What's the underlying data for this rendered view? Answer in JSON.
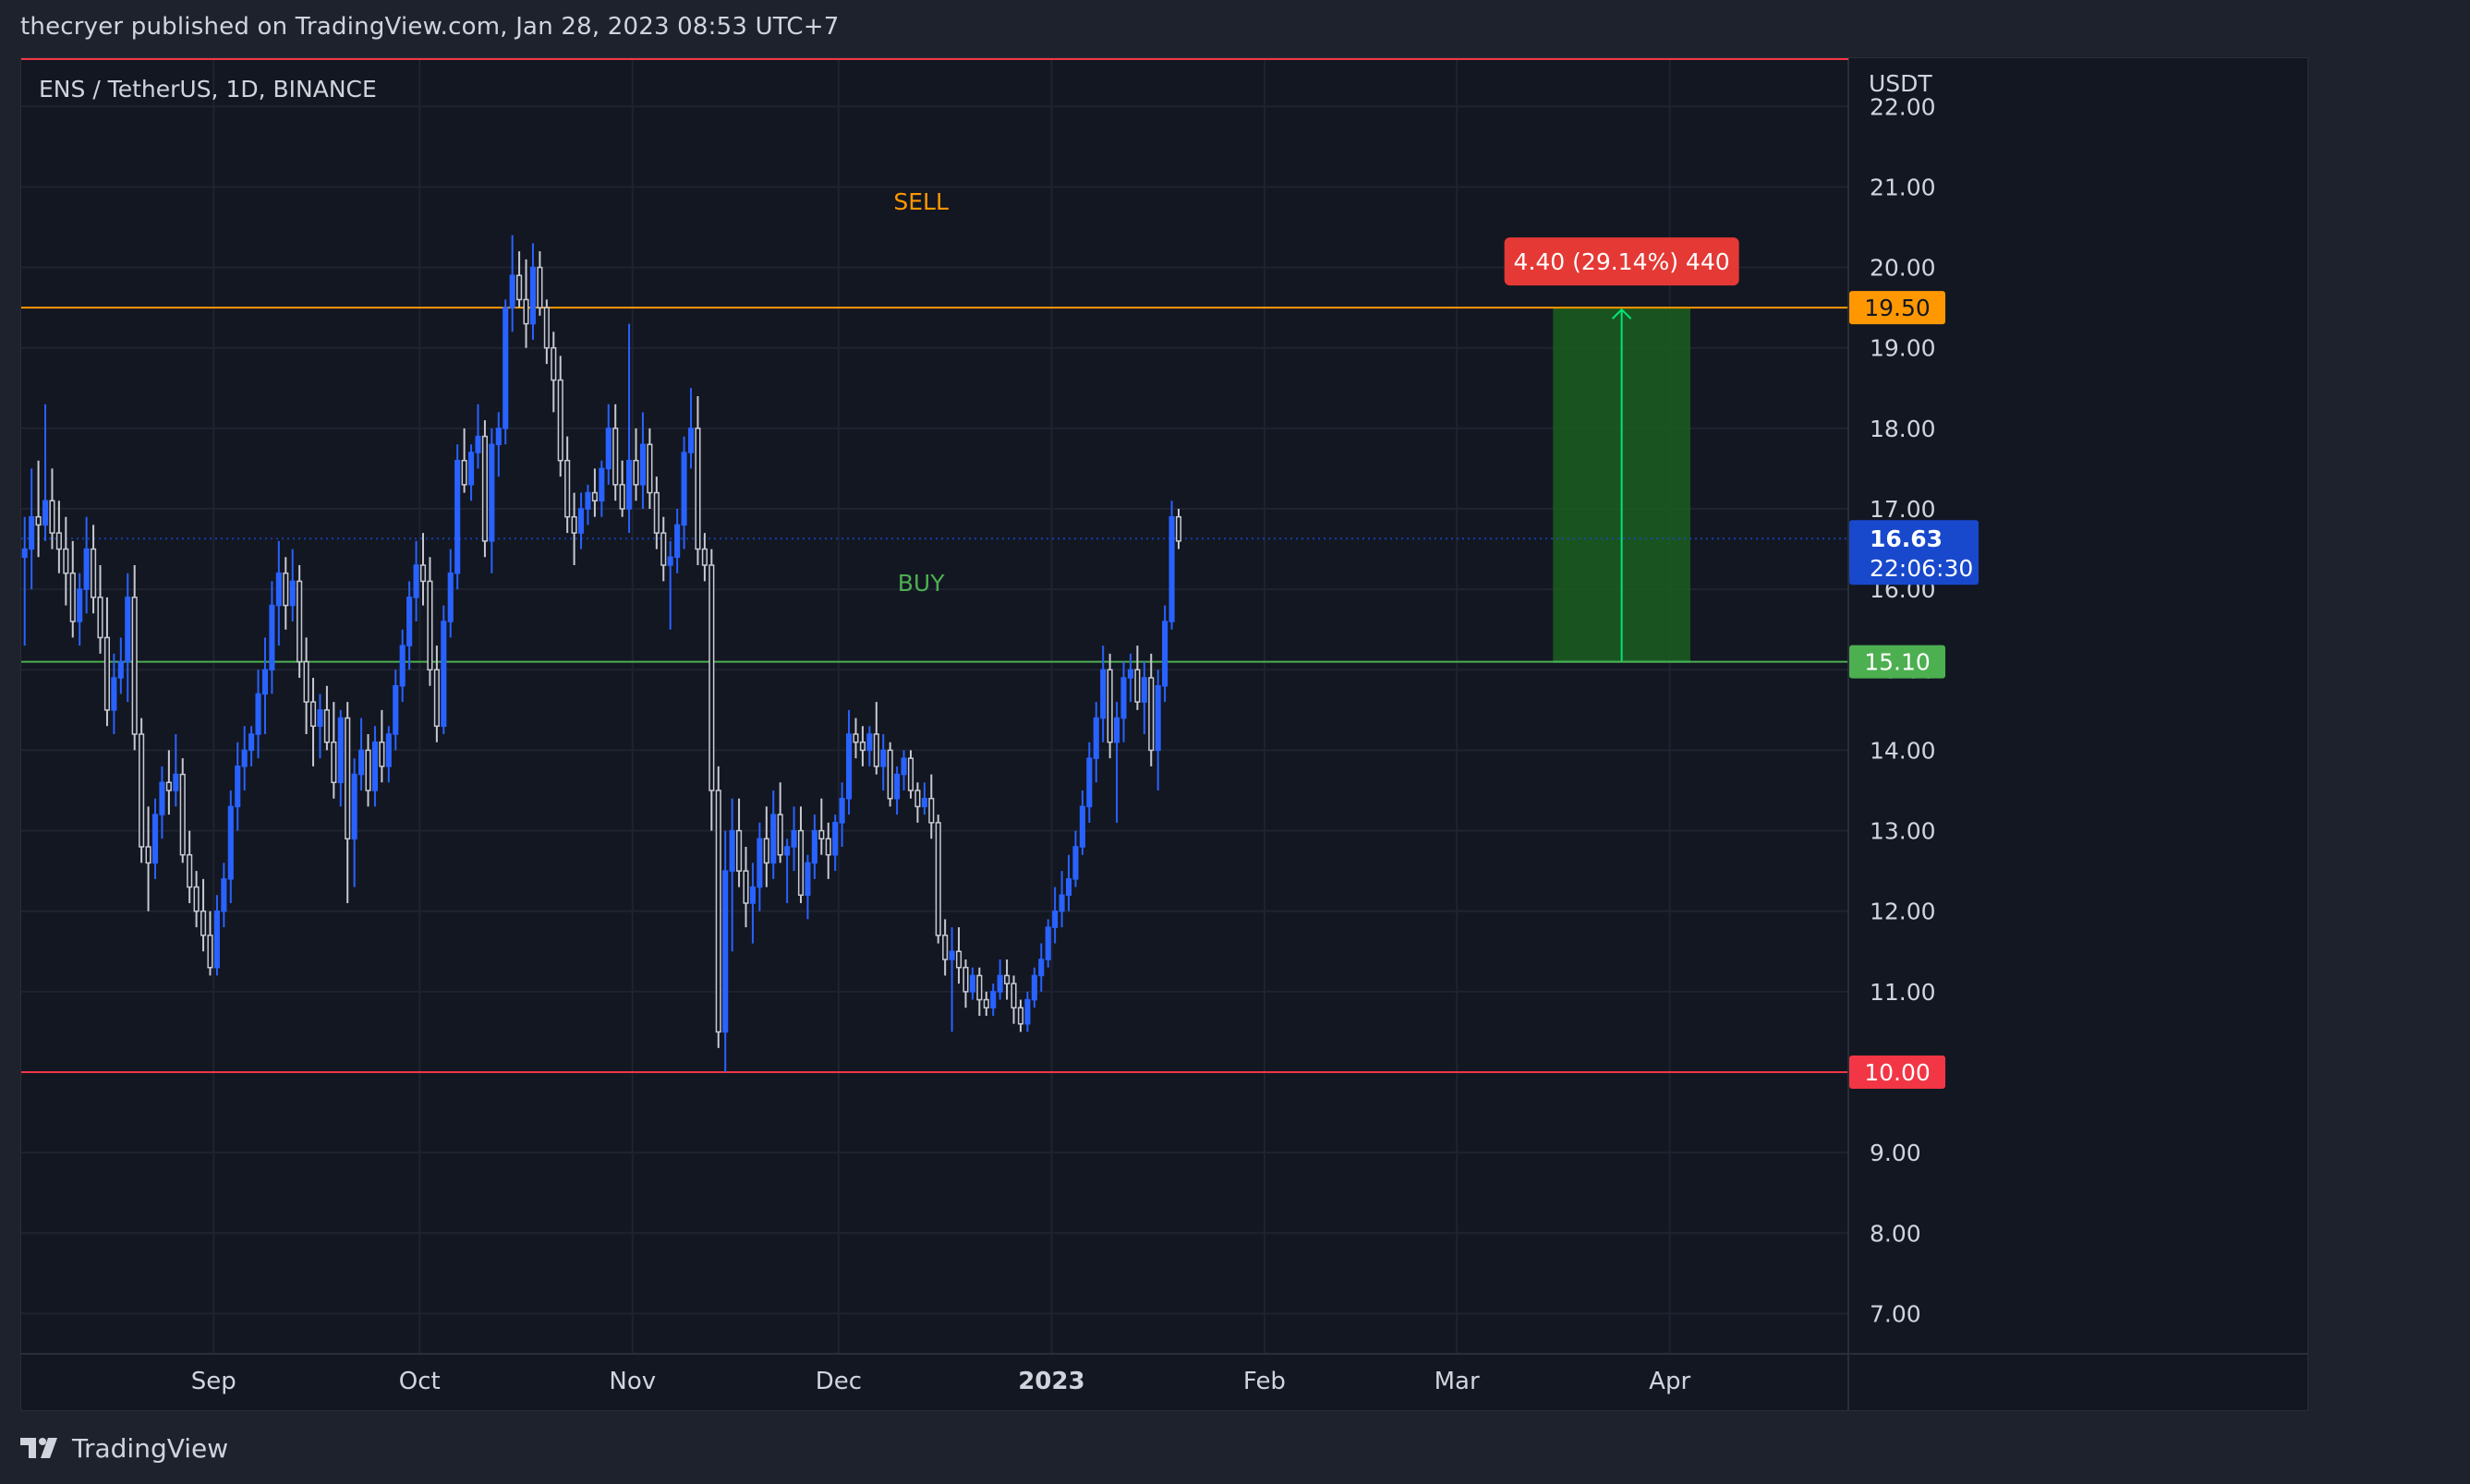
{
  "header": {
    "published_text": "thecryer published on TradingView.com, Jan 28, 2023 08:53 UTC+7"
  },
  "footer": {
    "brand": "TradingView"
  },
  "colors": {
    "background": "#131722",
    "grid": "#1f2330",
    "text": "#d1d4dc",
    "candle_up": "#2962ff",
    "candle_down": "#c7c9d1",
    "sell_line": "#ff9800",
    "buy_line": "#4caf50",
    "stop_line": "#f23645",
    "last_price": "#1848cc",
    "target_zone": "#1b5e20",
    "arrow": "#00e676",
    "measure_label": "#e53935"
  },
  "chart_data": {
    "type": "candlestick",
    "title": "ENS / TetherUS, 1D, BINANCE",
    "currency": "USDT",
    "ylim": [
      6.5,
      22.6
    ],
    "y_ticks": [
      7.0,
      8.0,
      9.0,
      10.0,
      11.0,
      12.0,
      13.0,
      14.0,
      15.0,
      16.0,
      17.0,
      18.0,
      19.0,
      20.0,
      21.0,
      22.0
    ],
    "x_date_range": [
      "2022-08-04",
      "2023-04-27"
    ],
    "x_ticks": [
      {
        "label": "Sep",
        "date": "2022-09-01",
        "bold": false
      },
      {
        "label": "Oct",
        "date": "2022-10-01",
        "bold": false
      },
      {
        "label": "Nov",
        "date": "2022-11-01",
        "bold": false
      },
      {
        "label": "Dec",
        "date": "2022-12-01",
        "bold": false
      },
      {
        "label": "2023",
        "date": "2023-01-01",
        "bold": true
      },
      {
        "label": "Feb",
        "date": "2023-02-01",
        "bold": false
      },
      {
        "label": "Mar",
        "date": "2023-03-01",
        "bold": false
      },
      {
        "label": "Apr",
        "date": "2023-04-01",
        "bold": false
      }
    ],
    "levels": [
      {
        "name": "sell",
        "value": 19.5,
        "label": "19.50",
        "color": "#ff9800",
        "text_color": "#131722"
      },
      {
        "name": "buy",
        "value": 15.1,
        "label": "15.10",
        "color": "#4caf50",
        "text_color": "#ffffff"
      },
      {
        "name": "stop",
        "value": 10.0,
        "label": "10.00",
        "color": "#f23645",
        "text_color": "#ffffff"
      }
    ],
    "annotations": [
      {
        "text": "SELL",
        "date": "2022-12-13",
        "value": 20.82,
        "color": "#ff9800"
      },
      {
        "text": "BUY",
        "date": "2022-12-13",
        "value": 16.08,
        "color": "#4caf50"
      }
    ],
    "last_price": {
      "value": 16.63,
      "label": "16.63",
      "countdown": "22:06:30"
    },
    "price_range": {
      "label": "4.40 (29.14%) 440",
      "from_value": 15.1,
      "to_value": 19.5,
      "start_date": "2023-03-15",
      "end_date": "2023-04-04"
    },
    "series": [
      {
        "name": "ENS/USDT",
        "start_date": "2022-08-04",
        "ohlc": [
          [
            16.4,
            16.9,
            15.3,
            16.5
          ],
          [
            16.5,
            17.5,
            16.0,
            16.9
          ],
          [
            16.9,
            17.6,
            16.4,
            16.8
          ],
          [
            16.8,
            18.3,
            16.6,
            17.1
          ],
          [
            17.1,
            17.5,
            16.5,
            16.7
          ],
          [
            16.7,
            17.1,
            16.2,
            16.5
          ],
          [
            16.5,
            16.9,
            15.8,
            16.2
          ],
          [
            16.2,
            16.6,
            15.4,
            15.6
          ],
          [
            15.6,
            16.2,
            15.3,
            16.0
          ],
          [
            16.0,
            16.9,
            15.7,
            16.5
          ],
          [
            16.5,
            16.8,
            15.7,
            15.9
          ],
          [
            15.9,
            16.3,
            15.2,
            15.4
          ],
          [
            15.4,
            15.9,
            14.3,
            14.5
          ],
          [
            14.5,
            15.2,
            14.2,
            14.9
          ],
          [
            14.9,
            15.4,
            14.7,
            15.1
          ],
          [
            15.1,
            16.2,
            14.6,
            15.9
          ],
          [
            15.9,
            16.3,
            14.0,
            14.2
          ],
          [
            14.2,
            14.4,
            12.6,
            12.8
          ],
          [
            12.8,
            13.3,
            12.0,
            12.6
          ],
          [
            12.6,
            13.4,
            12.4,
            13.2
          ],
          [
            13.2,
            13.8,
            12.9,
            13.6
          ],
          [
            13.6,
            14.0,
            13.2,
            13.5
          ],
          [
            13.5,
            14.2,
            13.3,
            13.7
          ],
          [
            13.7,
            13.9,
            12.6,
            12.7
          ],
          [
            12.7,
            13.0,
            12.1,
            12.3
          ],
          [
            12.3,
            12.5,
            11.8,
            12.0
          ],
          [
            12.0,
            12.4,
            11.5,
            11.7
          ],
          [
            11.7,
            12.0,
            11.2,
            11.3
          ],
          [
            11.3,
            12.2,
            11.2,
            12.0
          ],
          [
            12.0,
            12.6,
            11.8,
            12.4
          ],
          [
            12.4,
            13.5,
            12.1,
            13.3
          ],
          [
            13.3,
            14.1,
            13.0,
            13.8
          ],
          [
            13.8,
            14.3,
            13.5,
            14.0
          ],
          [
            14.0,
            14.3,
            13.8,
            14.2
          ],
          [
            14.2,
            15.0,
            13.9,
            14.7
          ],
          [
            14.7,
            15.4,
            14.2,
            15.0
          ],
          [
            15.0,
            16.1,
            14.7,
            15.8
          ],
          [
            15.8,
            16.6,
            15.3,
            16.2
          ],
          [
            16.2,
            16.4,
            15.5,
            15.8
          ],
          [
            15.8,
            16.5,
            15.6,
            16.1
          ],
          [
            16.1,
            16.3,
            14.9,
            15.1
          ],
          [
            15.1,
            15.4,
            14.2,
            14.6
          ],
          [
            14.6,
            14.9,
            13.8,
            14.3
          ],
          [
            14.3,
            14.7,
            13.9,
            14.5
          ],
          [
            14.5,
            14.8,
            14.0,
            14.1
          ],
          [
            14.1,
            14.6,
            13.4,
            13.6
          ],
          [
            13.6,
            14.5,
            13.3,
            14.4
          ],
          [
            14.4,
            14.6,
            12.1,
            12.9
          ],
          [
            12.9,
            13.9,
            12.3,
            13.7
          ],
          [
            13.7,
            14.4,
            13.5,
            14.0
          ],
          [
            14.0,
            14.2,
            13.3,
            13.5
          ],
          [
            13.5,
            14.3,
            13.3,
            14.1
          ],
          [
            14.1,
            14.5,
            13.6,
            13.8
          ],
          [
            13.8,
            14.3,
            13.6,
            14.2
          ],
          [
            14.2,
            15.0,
            14.0,
            14.8
          ],
          [
            14.8,
            15.5,
            14.6,
            15.3
          ],
          [
            15.3,
            16.1,
            15.0,
            15.9
          ],
          [
            15.9,
            16.6,
            15.6,
            16.3
          ],
          [
            16.3,
            16.7,
            15.8,
            16.1
          ],
          [
            16.1,
            16.4,
            14.8,
            15.0
          ],
          [
            15.0,
            15.3,
            14.1,
            14.3
          ],
          [
            14.3,
            15.8,
            14.2,
            15.6
          ],
          [
            15.6,
            16.5,
            15.4,
            16.2
          ],
          [
            16.2,
            17.8,
            16.0,
            17.6
          ],
          [
            17.6,
            18.0,
            17.2,
            17.3
          ],
          [
            17.3,
            17.8,
            17.1,
            17.7
          ],
          [
            17.7,
            18.3,
            17.5,
            17.9
          ],
          [
            17.9,
            18.1,
            16.4,
            16.6
          ],
          [
            16.6,
            18.0,
            16.2,
            17.8
          ],
          [
            17.8,
            18.2,
            17.4,
            18.0
          ],
          [
            18.0,
            19.6,
            17.8,
            19.5
          ],
          [
            19.5,
            20.4,
            19.2,
            19.9
          ],
          [
            19.9,
            20.2,
            19.5,
            19.6
          ],
          [
            19.6,
            20.1,
            19.0,
            19.3
          ],
          [
            19.3,
            20.3,
            19.1,
            20.0
          ],
          [
            20.0,
            20.2,
            19.4,
            19.5
          ],
          [
            19.5,
            19.6,
            18.8,
            19.0
          ],
          [
            19.0,
            19.2,
            18.2,
            18.6
          ],
          [
            18.6,
            18.9,
            17.4,
            17.6
          ],
          [
            17.6,
            17.9,
            16.7,
            16.9
          ],
          [
            16.9,
            17.2,
            16.3,
            16.7
          ],
          [
            16.7,
            17.2,
            16.5,
            17.0
          ],
          [
            17.0,
            17.3,
            16.8,
            17.2
          ],
          [
            17.2,
            17.5,
            16.9,
            17.1
          ],
          [
            17.1,
            17.6,
            16.9,
            17.5
          ],
          [
            17.5,
            18.3,
            17.3,
            18.0
          ],
          [
            18.0,
            18.3,
            17.1,
            17.3
          ],
          [
            17.3,
            17.6,
            16.9,
            17.0
          ],
          [
            17.0,
            19.3,
            16.7,
            17.6
          ],
          [
            17.6,
            18.0,
            17.1,
            17.3
          ],
          [
            17.3,
            18.2,
            17.0,
            17.8
          ],
          [
            17.8,
            18.0,
            17.0,
            17.2
          ],
          [
            17.2,
            17.4,
            16.5,
            16.7
          ],
          [
            16.7,
            16.9,
            16.1,
            16.3
          ],
          [
            16.3,
            16.6,
            15.5,
            16.4
          ],
          [
            16.4,
            17.0,
            16.2,
            16.8
          ],
          [
            16.8,
            17.9,
            16.5,
            17.7
          ],
          [
            17.7,
            18.5,
            17.5,
            18.0
          ],
          [
            18.0,
            18.4,
            16.3,
            16.5
          ],
          [
            16.5,
            16.7,
            16.1,
            16.3
          ],
          [
            16.3,
            16.5,
            13.0,
            13.5
          ],
          [
            13.5,
            13.8,
            10.3,
            10.5
          ],
          [
            10.5,
            13.0,
            10.0,
            12.5
          ],
          [
            12.5,
            13.4,
            11.5,
            13.0
          ],
          [
            13.0,
            13.4,
            12.3,
            12.5
          ],
          [
            12.5,
            12.8,
            11.8,
            12.1
          ],
          [
            12.1,
            12.6,
            11.6,
            12.3
          ],
          [
            12.3,
            13.1,
            12.0,
            12.9
          ],
          [
            12.9,
            13.3,
            12.3,
            12.6
          ],
          [
            12.6,
            13.5,
            12.4,
            13.2
          ],
          [
            13.2,
            13.6,
            12.6,
            12.7
          ],
          [
            12.7,
            12.9,
            12.1,
            12.8
          ],
          [
            12.8,
            13.3,
            12.5,
            13.0
          ],
          [
            13.0,
            13.3,
            12.1,
            12.2
          ],
          [
            12.2,
            12.7,
            11.9,
            12.6
          ],
          [
            12.6,
            13.2,
            12.4,
            13.0
          ],
          [
            13.0,
            13.4,
            12.7,
            12.9
          ],
          [
            12.9,
            13.1,
            12.4,
            12.7
          ],
          [
            12.7,
            13.2,
            12.5,
            13.1
          ],
          [
            13.1,
            13.6,
            12.8,
            13.4
          ],
          [
            13.4,
            14.5,
            13.2,
            14.2
          ],
          [
            14.2,
            14.4,
            13.9,
            14.1
          ],
          [
            14.1,
            14.3,
            13.8,
            14.0
          ],
          [
            14.0,
            14.3,
            13.8,
            14.2
          ],
          [
            14.2,
            14.6,
            13.7,
            13.8
          ],
          [
            13.8,
            14.2,
            13.5,
            14.0
          ],
          [
            14.0,
            14.1,
            13.3,
            13.4
          ],
          [
            13.4,
            13.8,
            13.2,
            13.7
          ],
          [
            13.7,
            14.0,
            13.5,
            13.9
          ],
          [
            13.9,
            14.0,
            13.4,
            13.5
          ],
          [
            13.5,
            13.6,
            13.1,
            13.3
          ],
          [
            13.3,
            13.6,
            13.2,
            13.4
          ],
          [
            13.4,
            13.7,
            12.9,
            13.1
          ],
          [
            13.1,
            13.2,
            11.6,
            11.7
          ],
          [
            11.7,
            11.9,
            11.2,
            11.4
          ],
          [
            11.4,
            11.8,
            10.5,
            11.5
          ],
          [
            11.5,
            11.8,
            11.1,
            11.3
          ],
          [
            11.3,
            11.4,
            10.8,
            11.0
          ],
          [
            11.0,
            11.3,
            10.9,
            11.2
          ],
          [
            11.2,
            11.3,
            10.7,
            10.9
          ],
          [
            10.9,
            11.0,
            10.7,
            10.8
          ],
          [
            10.8,
            11.1,
            10.7,
            11.0
          ],
          [
            11.0,
            11.4,
            10.9,
            11.2
          ],
          [
            11.2,
            11.4,
            10.9,
            11.1
          ],
          [
            11.1,
            11.2,
            10.6,
            10.8
          ],
          [
            10.8,
            10.9,
            10.5,
            10.6
          ],
          [
            10.6,
            11.0,
            10.5,
            10.9
          ],
          [
            10.9,
            11.3,
            10.8,
            11.2
          ],
          [
            11.2,
            11.6,
            11.0,
            11.4
          ],
          [
            11.4,
            11.9,
            11.3,
            11.8
          ],
          [
            11.8,
            12.3,
            11.6,
            12.0
          ],
          [
            12.0,
            12.5,
            11.8,
            12.2
          ],
          [
            12.2,
            12.7,
            12.0,
            12.4
          ],
          [
            12.4,
            13.0,
            12.3,
            12.8
          ],
          [
            12.8,
            13.5,
            12.7,
            13.3
          ],
          [
            13.3,
            14.1,
            13.1,
            13.9
          ],
          [
            13.9,
            14.6,
            13.6,
            14.4
          ],
          [
            14.4,
            15.3,
            14.1,
            15.0
          ],
          [
            15.0,
            15.2,
            13.9,
            14.1
          ],
          [
            14.1,
            14.6,
            13.1,
            14.4
          ],
          [
            14.4,
            15.1,
            14.1,
            14.9
          ],
          [
            14.9,
            15.2,
            14.6,
            15.0
          ],
          [
            15.0,
            15.3,
            14.5,
            14.6
          ],
          [
            14.6,
            15.1,
            14.2,
            14.9
          ],
          [
            14.9,
            15.2,
            13.8,
            14.0
          ],
          [
            14.0,
            15.0,
            13.5,
            14.8
          ],
          [
            14.8,
            15.8,
            14.6,
            15.6
          ],
          [
            15.6,
            17.1,
            15.5,
            16.9
          ],
          [
            16.9,
            17.0,
            16.5,
            16.6
          ]
        ]
      }
    ]
  }
}
